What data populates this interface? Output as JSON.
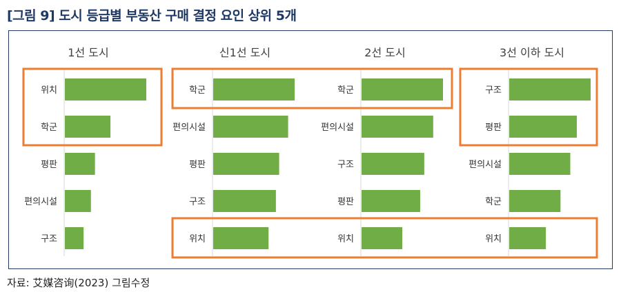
{
  "figure_title": "[그림 9] 도시 등급별 부동산 구매 결정 요인 상위 5개",
  "source": "자료: 艾媒咨询(2023) 그림수정",
  "colors": {
    "bar": "#70ad47",
    "highlight": "#ed7d31",
    "title": "#1f3864",
    "frame": "#1f3864"
  },
  "chart_data": [
    {
      "type": "bar",
      "orientation": "horizontal",
      "title": "1선 도시",
      "categories": [
        "위치",
        "학군",
        "평판",
        "편의시설",
        "구조"
      ],
      "values": [
        100,
        56,
        37,
        32,
        23
      ],
      "value_scale": "relative",
      "highlighted": [
        "위치",
        "학군"
      ]
    },
    {
      "type": "bar",
      "orientation": "horizontal",
      "title": "신1선 도시",
      "categories": [
        "학군",
        "편의시설",
        "평판",
        "구조",
        "위치"
      ],
      "values": [
        100,
        92,
        81,
        77,
        68
      ],
      "value_scale": "relative",
      "highlighted": [
        "학군",
        "위치"
      ]
    },
    {
      "type": "bar",
      "orientation": "horizontal",
      "title": "2선 도시",
      "categories": [
        "학군",
        "편의시설",
        "구조",
        "평판",
        "위치"
      ],
      "values": [
        100,
        88,
        77,
        72,
        50
      ],
      "value_scale": "relative",
      "highlighted": [
        "학군",
        "위치"
      ]
    },
    {
      "type": "bar",
      "orientation": "horizontal",
      "title": "3선 이하 도시",
      "categories": [
        "구조",
        "평판",
        "편의시설",
        "학군",
        "위치"
      ],
      "values": [
        100,
        83,
        75,
        63,
        45
      ],
      "value_scale": "relative",
      "highlighted": [
        "구조",
        "평판",
        "위치"
      ]
    }
  ]
}
